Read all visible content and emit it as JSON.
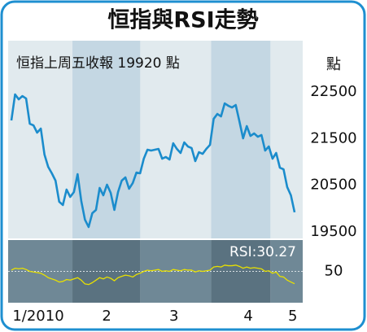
{
  "chart_data": [
    {
      "type": "line",
      "title": "恒指與RSI走勢",
      "annotation": "恒指上周五收報 19920 點",
      "y_label": "點",
      "color": "#1b8ccc",
      "values": [
        21890,
        22448,
        22343,
        22413,
        22360,
        21820,
        21785,
        21628,
        21715,
        21157,
        20895,
        20756,
        20599,
        20146,
        20076,
        20407,
        20250,
        20355,
        20738,
        20163,
        19762,
        19605,
        19901,
        19971,
        20442,
        20285,
        20512,
        20337,
        19971,
        20355,
        20599,
        20669,
        20425,
        20547,
        20773,
        20756,
        21070,
        21262,
        21244,
        21262,
        21279,
        21070,
        21105,
        21052,
        21401,
        21279,
        21192,
        21419,
        21331,
        21297,
        21018,
        21209,
        21174,
        21279,
        21366,
        21924,
        22029,
        21977,
        22256,
        22204,
        22169,
        22221,
        21872,
        21506,
        21768,
        21558,
        21611,
        21541,
        21576,
        21244,
        21331,
        21070,
        21192,
        20878,
        20843,
        20460,
        20285,
        19920
      ],
      "xlim": [
        0,
        77
      ],
      "xticks": [
        {
          "value": 7.3,
          "label": "1/2010"
        },
        {
          "value": 25.9,
          "label": "2"
        },
        {
          "value": 44.2,
          "label": "3"
        },
        {
          "value": 64.4,
          "label": "4"
        },
        {
          "value": 76.5,
          "label": "5"
        }
      ],
      "ylim": [
        19360,
        23600
      ],
      "yticks": [
        19500,
        20500,
        21500,
        22500
      ]
    },
    {
      "type": "line",
      "annotation": "RSI:30.27",
      "color": "#e8e000",
      "values": [
        52,
        55,
        54,
        55,
        53,
        50,
        49,
        48,
        47,
        44,
        40,
        38,
        36,
        33,
        34,
        37,
        36,
        38,
        40,
        36,
        30,
        29,
        32,
        36,
        40,
        38,
        41,
        39,
        35,
        40,
        42,
        44,
        43,
        41,
        45,
        47,
        50,
        52,
        51,
        52,
        53,
        50,
        51,
        50,
        53,
        52,
        51,
        53,
        52,
        52,
        49,
        51,
        50,
        51,
        52,
        57,
        58,
        57,
        60,
        59,
        59,
        60,
        58,
        55,
        57,
        55,
        56,
        55,
        54,
        50,
        51,
        47,
        49,
        42,
        41,
        36,
        33,
        30.27
      ],
      "xlim": [
        0,
        77
      ],
      "ylim": [
        0,
        100
      ],
      "yticks": [
        50
      ],
      "grid": true
    }
  ]
}
